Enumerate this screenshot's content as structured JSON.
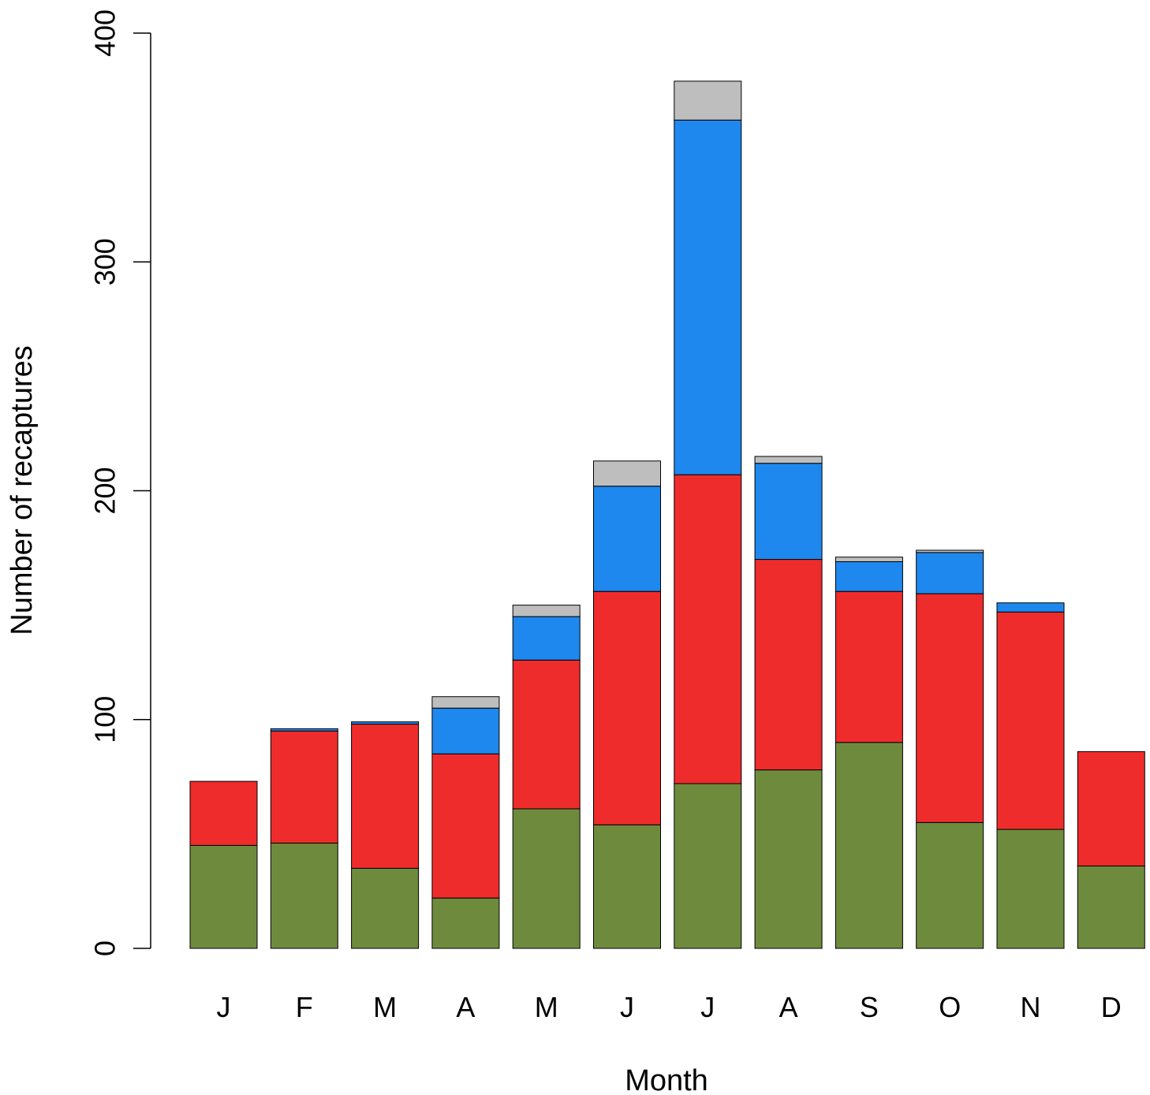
{
  "chart_data": {
    "type": "bar",
    "stacked": true,
    "title": "",
    "xlabel": "Month",
    "ylabel": "Number of recaptures",
    "ylim": [
      0,
      400
    ],
    "yticks": [
      "0",
      "100",
      "200",
      "300",
      "400"
    ],
    "categories": [
      "J",
      "F",
      "M",
      "A",
      "M",
      "J",
      "J",
      "A",
      "S",
      "O",
      "N",
      "D"
    ],
    "grid": false,
    "legend": "none",
    "series": [
      {
        "color": "#6E8B3D",
        "values": [
          45,
          46,
          35,
          22,
          61,
          54,
          72,
          78,
          90,
          55,
          52,
          36
        ]
      },
      {
        "color": "#EE2C2C",
        "values": [
          28,
          49,
          63,
          63,
          65,
          102,
          135,
          92,
          66,
          100,
          95,
          50
        ]
      },
      {
        "color": "#1E88EE",
        "values": [
          0,
          1,
          1,
          20,
          19,
          46,
          155,
          42,
          13,
          18,
          4,
          0
        ]
      },
      {
        "color": "#BEBEBE",
        "values": [
          0,
          0,
          0,
          5,
          5,
          11,
          17,
          3,
          2,
          1,
          0,
          0
        ]
      }
    ]
  }
}
